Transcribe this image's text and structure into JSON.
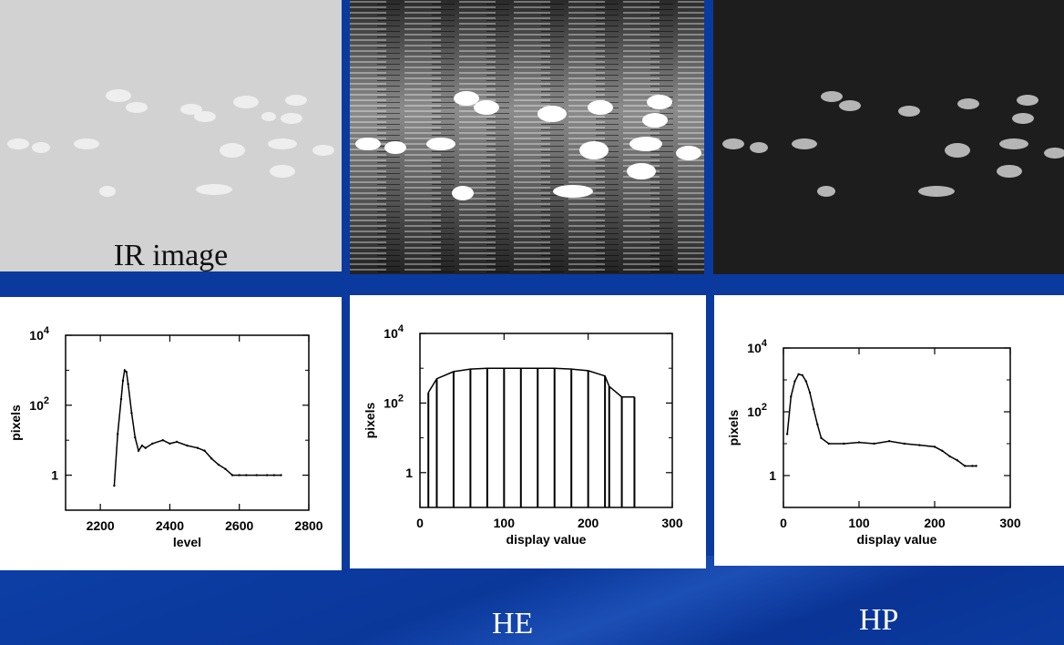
{
  "photos": [
    {
      "caption": "IR image"
    },
    {
      "caption": ""
    },
    {
      "caption": ""
    }
  ],
  "labels": {
    "he": "HE",
    "hp": "HP"
  },
  "chart_data": [
    {
      "type": "line",
      "title": "",
      "xlabel": "level",
      "ylabel": "pixels",
      "xlim": [
        2100,
        2800
      ],
      "ylim": [
        0.1,
        10000
      ],
      "yscale": "log",
      "xticks": [
        2200,
        2400,
        2600,
        2800
      ],
      "yticks": [
        {
          "value": 1,
          "label": "1"
        },
        {
          "value": 100,
          "label": "10",
          "exp": "2"
        },
        {
          "value": 10000,
          "label": "10",
          "exp": "4"
        }
      ],
      "series": [
        {
          "x": [
            2240,
            2250,
            2260,
            2265,
            2270,
            2275,
            2280,
            2290,
            2300,
            2310,
            2320,
            2330,
            2350,
            2380,
            2400,
            2420,
            2450,
            2480,
            2500,
            2520,
            2540,
            2560,
            2580,
            2600,
            2620,
            2650,
            2680,
            2700,
            2720
          ],
          "y": [
            0.5,
            15,
            150,
            500,
            1000,
            900,
            400,
            60,
            12,
            5,
            7,
            6,
            8,
            10,
            8,
            9,
            7,
            6,
            5,
            3,
            2,
            1.5,
            1,
            1,
            1,
            1,
            1,
            1,
            1
          ]
        }
      ]
    },
    {
      "type": "bar",
      "title": "",
      "xlabel": "display value",
      "ylabel": "pixels",
      "xlim": [
        0,
        300
      ],
      "ylim": [
        0.1,
        10000
      ],
      "yscale": "log",
      "xticks": [
        0,
        100,
        200,
        300
      ],
      "yticks": [
        {
          "value": 1,
          "label": "1"
        },
        {
          "value": 100,
          "label": "10",
          "exp": "2"
        },
        {
          "value": 10000,
          "label": "10",
          "exp": "4"
        }
      ],
      "series": [
        {
          "x": [
            10,
            20,
            40,
            60,
            80,
            100,
            120,
            140,
            160,
            180,
            200,
            220,
            225,
            240,
            255
          ],
          "y": [
            200,
            500,
            800,
            950,
            1000,
            1000,
            1000,
            1000,
            1000,
            950,
            850,
            600,
            300,
            150,
            150
          ]
        }
      ]
    },
    {
      "type": "line",
      "title": "",
      "xlabel": "display value",
      "ylabel": "pixels",
      "xlim": [
        0,
        300
      ],
      "ylim": [
        0.1,
        10000
      ],
      "yscale": "log",
      "xticks": [
        0,
        100,
        200,
        300
      ],
      "yticks": [
        {
          "value": 1,
          "label": "1"
        },
        {
          "value": 100,
          "label": "10",
          "exp": "2"
        },
        {
          "value": 10000,
          "label": "10",
          "exp": "4"
        }
      ],
      "series": [
        {
          "x": [
            5,
            10,
            15,
            20,
            25,
            30,
            35,
            40,
            45,
            50,
            60,
            80,
            100,
            120,
            140,
            160,
            180,
            200,
            210,
            220,
            230,
            240,
            250,
            255
          ],
          "y": [
            20,
            300,
            900,
            1500,
            1400,
            900,
            400,
            120,
            40,
            15,
            10,
            10,
            11,
            10,
            12,
            10,
            9,
            8,
            6,
            4,
            3,
            2,
            2,
            2
          ]
        }
      ]
    }
  ]
}
